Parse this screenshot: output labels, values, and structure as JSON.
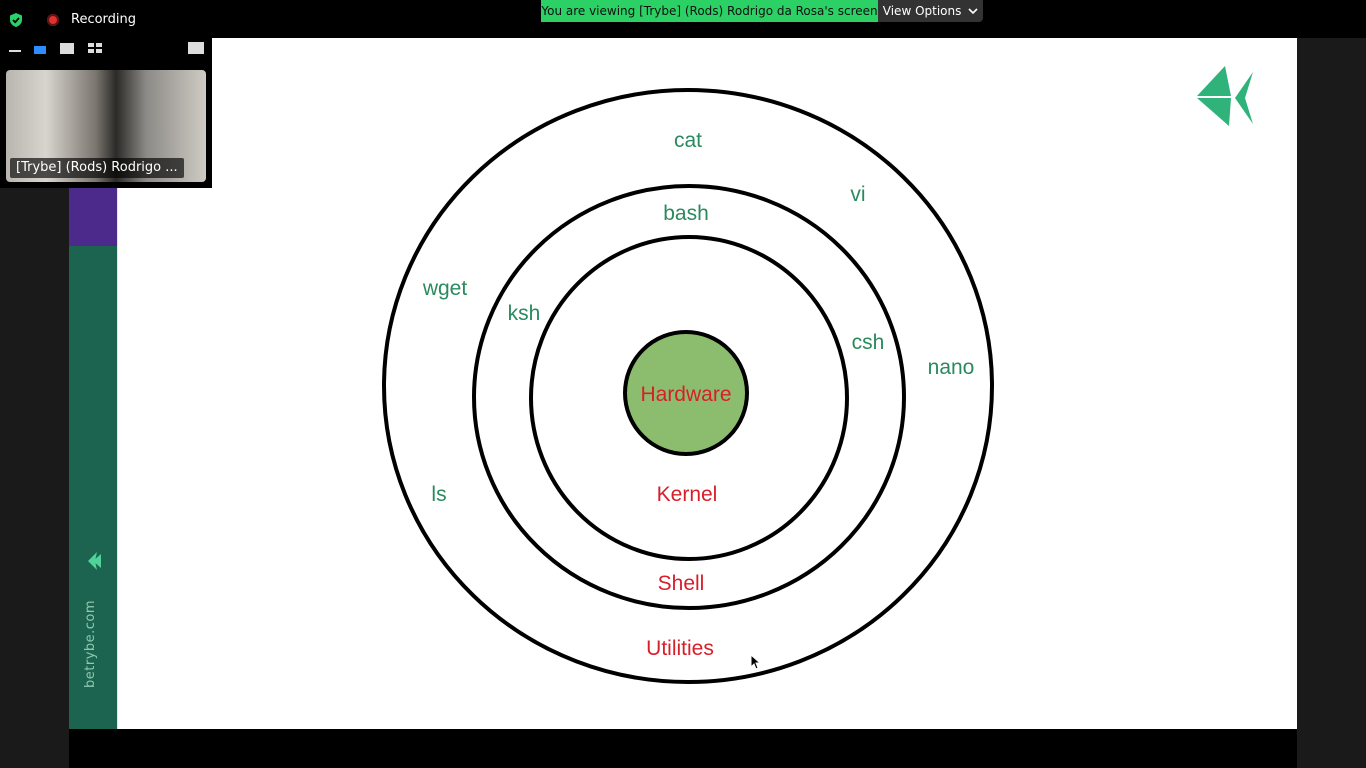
{
  "zoom": {
    "recording_label": "Recording",
    "viewing_banner": "You are viewing [Trybe]  (Rods) Rodrigo da Rosa's screen",
    "view_options_label": "View Options",
    "participant_name": "[Trybe]  (Rods) Rodrigo ..."
  },
  "slide": {
    "side_text": "betrybe.com",
    "labels": {
      "cat": "cat",
      "vi": "vi",
      "bash": "bash",
      "wget": "wget",
      "ksh": "ksh",
      "csh": "csh",
      "nano": "nano",
      "hardware": "Hardware",
      "ls": "ls",
      "kernel": "Kernel",
      "shell": "Shell",
      "utilities": "Utilities"
    }
  },
  "colors": {
    "green_label": "#2a8a5e",
    "red_label": "#d71f2a",
    "hardware_fill": "#8cbd6f",
    "banner_green": "#2bd164",
    "side_green": "#1d6450",
    "side_purple": "#4b2a8c"
  },
  "icons": [
    "shield-icon",
    "record-icon",
    "chevron-down-icon",
    "minimize-icon",
    "speaker-view-icon",
    "gallery-view-icon",
    "grid-view-icon",
    "expand-icon",
    "trybe-logo-icon",
    "mouse-cursor-icon"
  ]
}
